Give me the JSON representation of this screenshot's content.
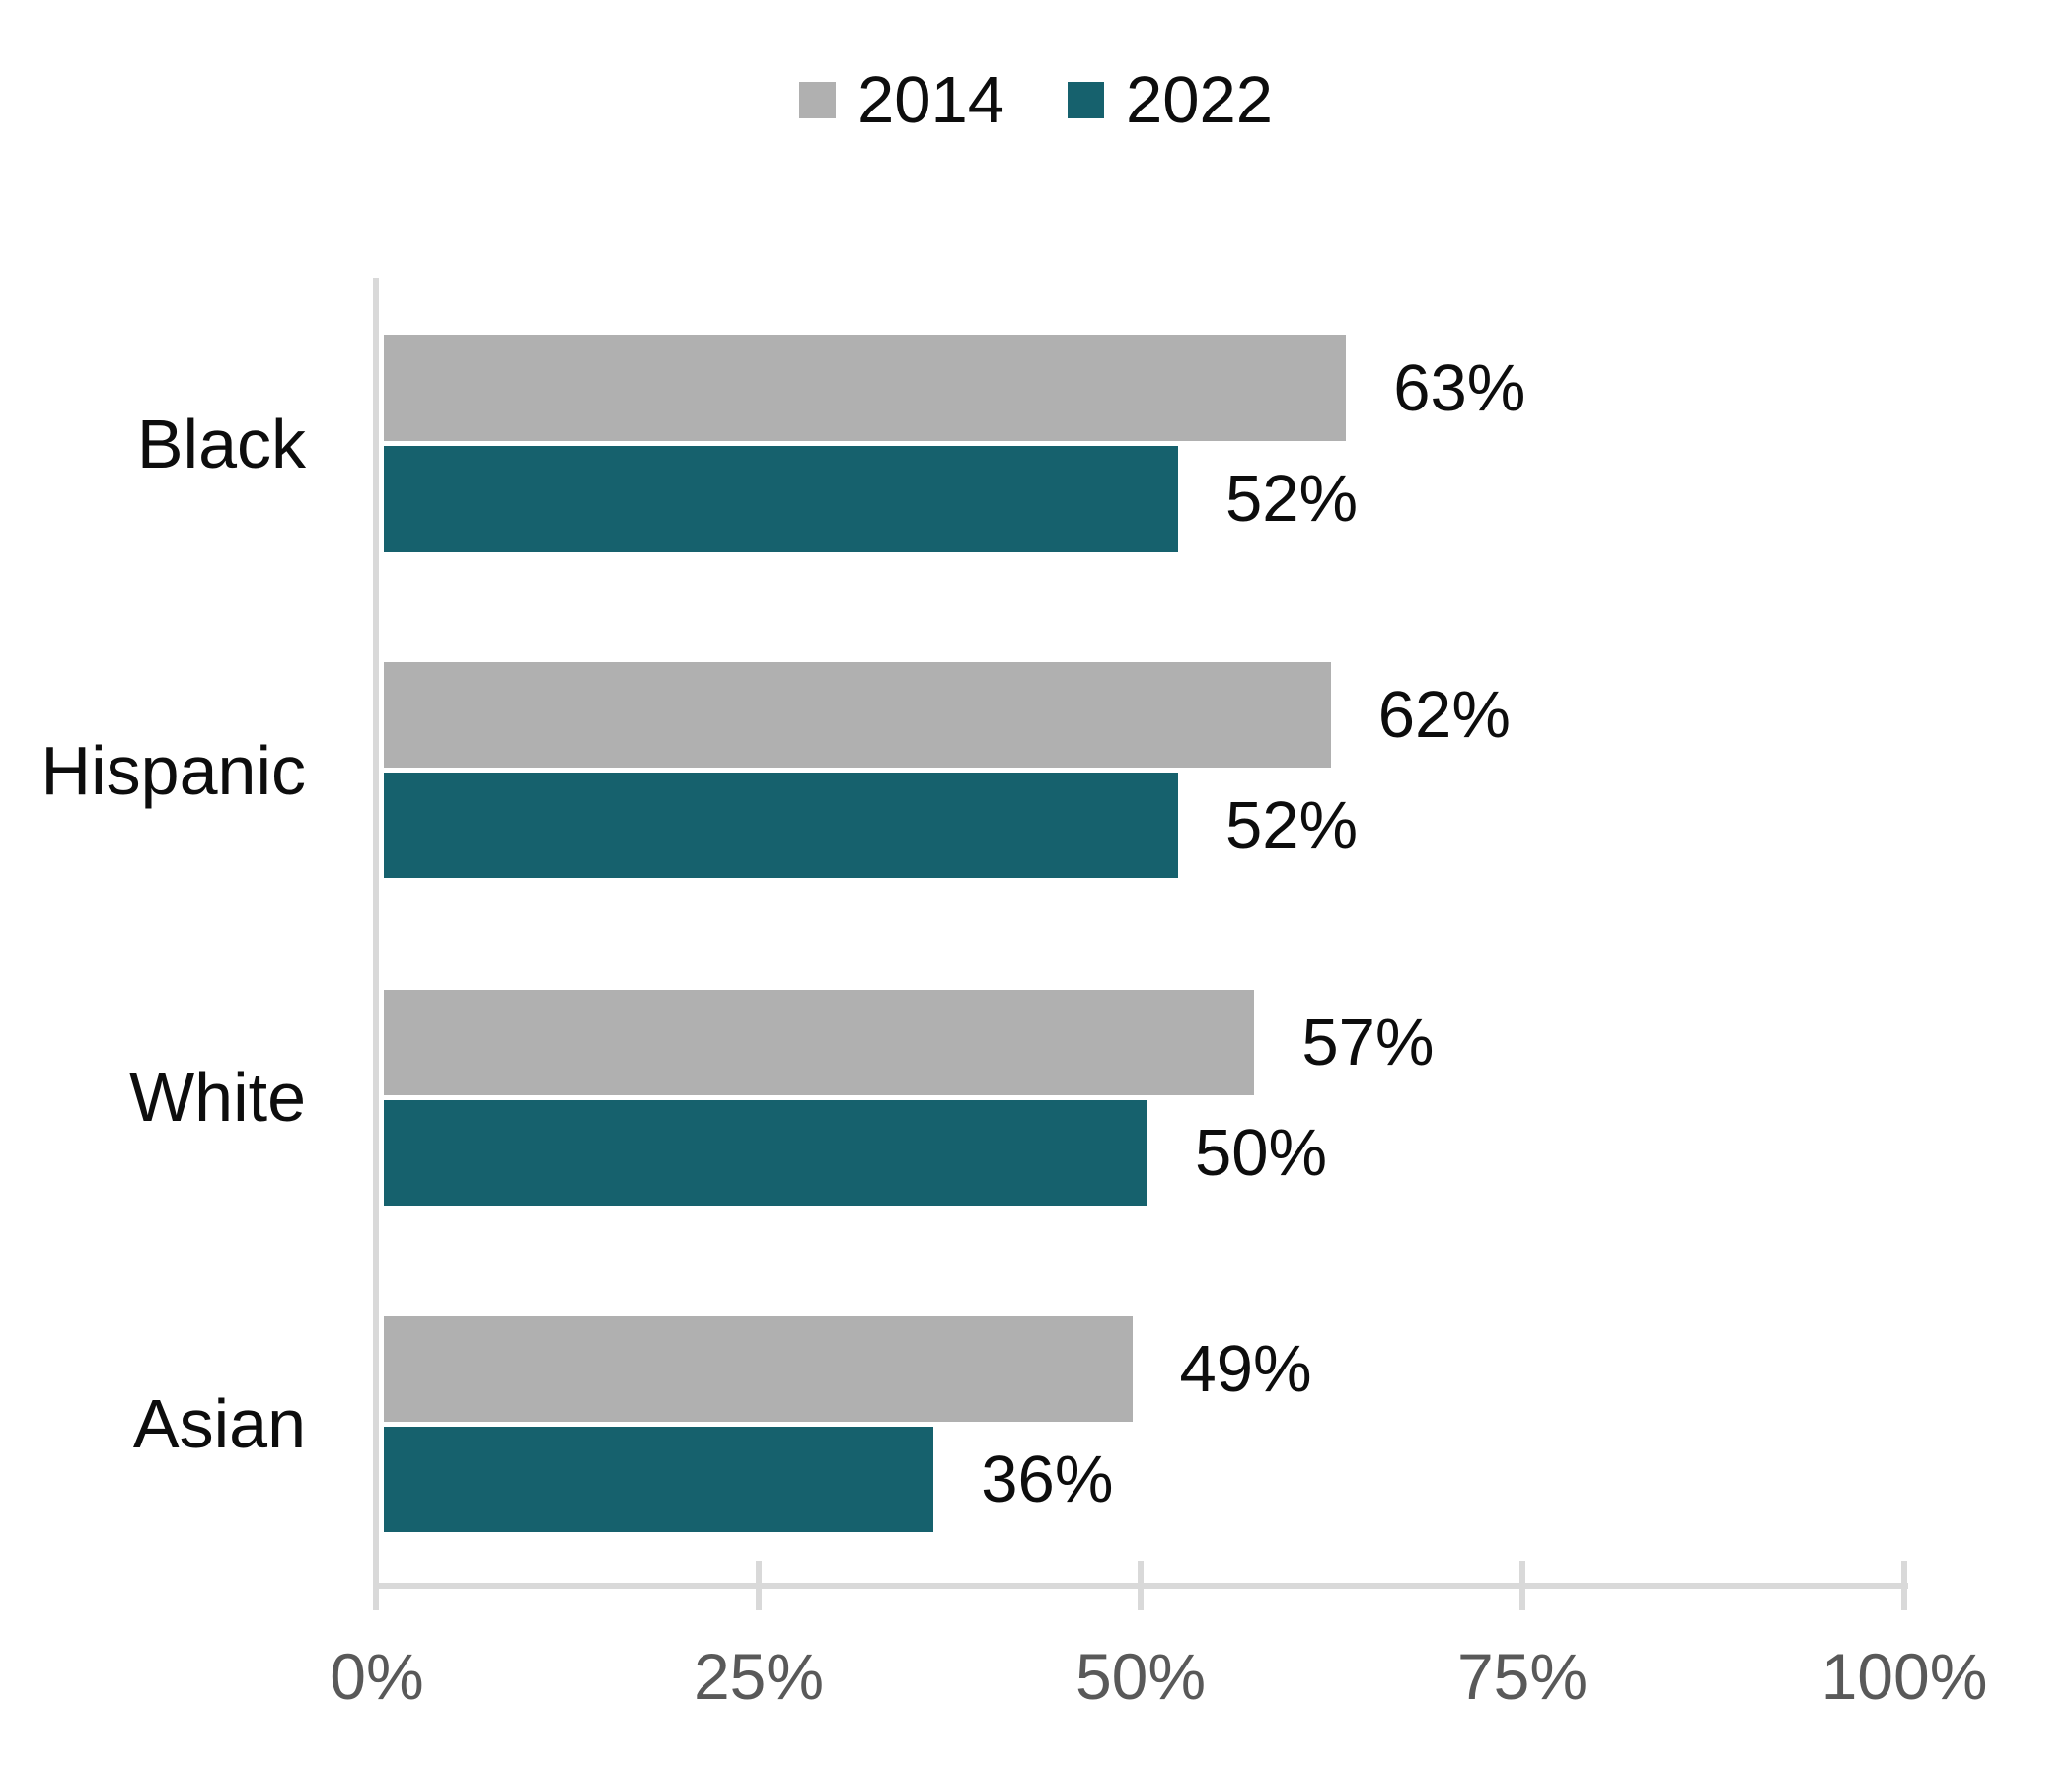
{
  "colors": {
    "series_2014": "#B0B0B0",
    "series_2022": "#16616D",
    "axis_line": "#D9D9D9",
    "axis_text": "#595959",
    "label_text": "#0D0D0D",
    "background": "#FFFFFF"
  },
  "legend": {
    "position": "top",
    "items": [
      {
        "label": "2014",
        "color": "#B0B0B0"
      },
      {
        "label": "2022",
        "color": "#16616D"
      }
    ]
  },
  "chart_data": {
    "type": "bar",
    "orientation": "horizontal",
    "title": "",
    "xlabel": "",
    "ylabel": "",
    "grid": false,
    "legend_position": "top",
    "categories": [
      "Black",
      "Hispanic",
      "White",
      "Asian"
    ],
    "series": [
      {
        "name": "2014",
        "color": "#B0B0B0",
        "values": [
          63,
          62,
          57,
          49
        ]
      },
      {
        "name": "2022",
        "color": "#16616D",
        "values": [
          52,
          52,
          50,
          36
        ]
      }
    ],
    "data_labels": [
      [
        "63%",
        "62%",
        "57%",
        "49%"
      ],
      [
        "52%",
        "52%",
        "50%",
        "36%"
      ]
    ],
    "xlim": [
      0,
      100
    ],
    "x_ticks": [
      "0%",
      "25%",
      "50%",
      "75%",
      "100%"
    ],
    "x_tick_values": [
      0,
      25,
      50,
      75,
      100
    ]
  }
}
